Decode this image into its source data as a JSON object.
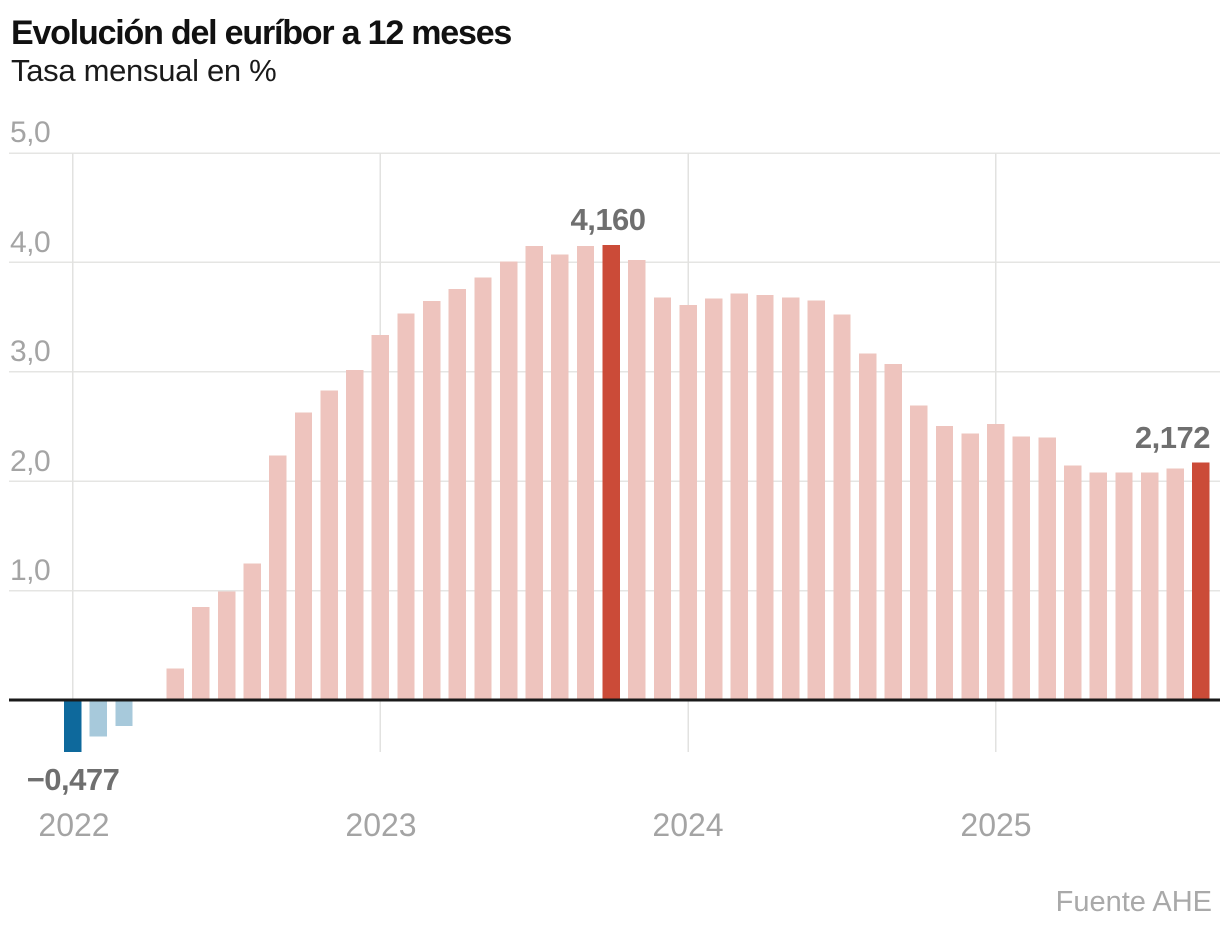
{
  "header": {
    "title": "Evolución del euríbor a 12 meses",
    "subtitle": "Tasa mensual en %"
  },
  "source": "Fuente AHE",
  "colors": {
    "bar_default": "#eec4be",
    "bar_highlight": "#cb4b38",
    "bar_highlight_negative": "#0e699c",
    "bar_negative_light": "#a7c9db",
    "gridline": "#e5e5e3",
    "year_gridline": "#e2e2e0",
    "axis_line": "#1a1a1a",
    "axis_label": "#a4a4a4",
    "annotation": "#6f6f6f",
    "source_text": "#a9a9a9"
  },
  "chart_data": {
    "type": "bar",
    "title": "Evolución del euríbor a 12 meses",
    "xlabel": "",
    "ylabel": "Tasa mensual en %",
    "ylim": [
      -0.5,
      5.0
    ],
    "grid": true,
    "legend": false,
    "categories": [
      "2022-01",
      "2022-02",
      "2022-03",
      "2022-04",
      "2022-05",
      "2022-06",
      "2022-07",
      "2022-08",
      "2022-09",
      "2022-10",
      "2022-11",
      "2022-12",
      "2023-01",
      "2023-02",
      "2023-03",
      "2023-04",
      "2023-05",
      "2023-06",
      "2023-07",
      "2023-08",
      "2023-09",
      "2023-10",
      "2023-11",
      "2023-12",
      "2024-01",
      "2024-02",
      "2024-03",
      "2024-04",
      "2024-05",
      "2024-06",
      "2024-07",
      "2024-08",
      "2024-09",
      "2024-10",
      "2024-11",
      "2024-12",
      "2025-01",
      "2025-02",
      "2025-03",
      "2025-04",
      "2025-05",
      "2025-06",
      "2025-07",
      "2025-08",
      "2025-09"
    ],
    "values": [
      -0.477,
      -0.335,
      -0.237,
      0.013,
      0.287,
      0.852,
      0.992,
      1.249,
      2.233,
      2.629,
      2.828,
      3.018,
      3.337,
      3.534,
      3.647,
      3.757,
      3.862,
      4.007,
      4.149,
      4.073,
      4.149,
      4.16,
      4.022,
      3.679,
      3.609,
      3.671,
      3.718,
      3.703,
      3.68,
      3.65,
      3.526,
      3.166,
      3.073,
      2.691,
      2.506,
      2.436,
      2.525,
      2.407,
      2.398,
      2.143,
      2.081,
      2.081,
      2.079,
      2.114,
      2.172
    ],
    "highlights": {
      "0": "bar_highlight_negative",
      "1": "bar_negative_light",
      "2": "bar_negative_light",
      "21": "bar_highlight",
      "44": "bar_highlight"
    },
    "yticks": [
      {
        "label": "5,0",
        "value": 5
      },
      {
        "label": "4,0",
        "value": 4
      },
      {
        "label": "3,0",
        "value": 3
      },
      {
        "label": "2,0",
        "value": 2
      },
      {
        "label": "1,0",
        "value": 1
      }
    ],
    "years": [
      {
        "label": "2022",
        "month_index": 0
      },
      {
        "label": "2023",
        "month_index": 12
      },
      {
        "label": "2024",
        "month_index": 24
      },
      {
        "label": "2025",
        "month_index": 36
      }
    ],
    "annotations": [
      {
        "text": "−0,477",
        "bar_index": 0,
        "position": "below"
      },
      {
        "text": "4,160",
        "bar_index": 21,
        "position": "above"
      },
      {
        "text": "2,172",
        "bar_index": 44,
        "position": "above"
      }
    ]
  }
}
